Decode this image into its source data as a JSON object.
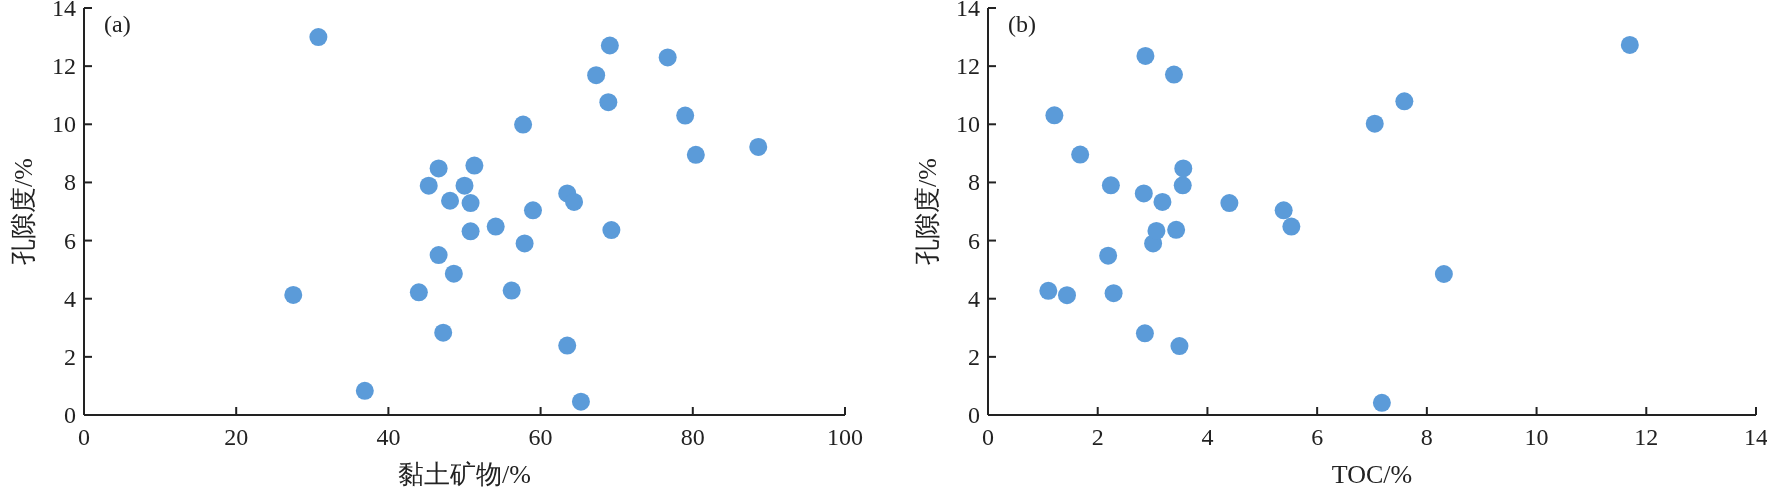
{
  "chart_data": [
    {
      "type": "scatter",
      "title": "(a)",
      "xlabel": "黏土矿物/%",
      "ylabel": "孔隙度/%",
      "xlim": [
        0,
        100
      ],
      "xticks": [
        0,
        20,
        40,
        60,
        80,
        100
      ],
      "ylim": [
        0,
        14
      ],
      "yticks": [
        0,
        2,
        4,
        6,
        8,
        10,
        12,
        14
      ],
      "marker": "circle",
      "series": [
        {
          "color": "#5b9bd9",
          "x": [
            30.8,
            27.5,
            36.9,
            44.0,
            45.3,
            46.6,
            46.6,
            47.2,
            48.1,
            48.6,
            50.0,
            50.8,
            50.8,
            51.3,
            54.1,
            56.2,
            57.7,
            57.9,
            59.0,
            63.5,
            63.5,
            64.4,
            65.3,
            67.3,
            68.9,
            69.1,
            69.3,
            76.7,
            79.0,
            80.4,
            88.6
          ],
          "values": [
            13.0,
            4.13,
            0.83,
            4.22,
            7.89,
            8.48,
            5.5,
            2.83,
            7.37,
            4.86,
            7.89,
            7.29,
            6.32,
            8.58,
            6.48,
            4.28,
            9.99,
            5.9,
            7.04,
            2.39,
            7.62,
            7.33,
            0.46,
            11.69,
            10.76,
            12.71,
            6.36,
            12.3,
            10.3,
            8.95,
            9.22
          ]
        }
      ]
    },
    {
      "type": "scatter",
      "title": "(b)",
      "xlabel": "TOC/%",
      "ylabel": "孔隙度/%",
      "xlim": [
        0,
        14
      ],
      "xticks": [
        0,
        2,
        4,
        6,
        8,
        10,
        12,
        14
      ],
      "ylim": [
        0,
        14
      ],
      "yticks": [
        0,
        2,
        4,
        6,
        8,
        10,
        12,
        14
      ],
      "marker": "circle",
      "series": [
        {
          "color": "#5b9bd9",
          "x": [
            1.21,
            1.1,
            1.44,
            1.68,
            2.19,
            2.24,
            2.29,
            2.84,
            2.86,
            2.87,
            3.01,
            3.07,
            3.18,
            3.39,
            3.43,
            3.49,
            3.55,
            3.56,
            4.4,
            5.39,
            5.53,
            7.05,
            7.18,
            7.59,
            8.31,
            11.7
          ],
          "values": [
            10.31,
            4.27,
            4.12,
            8.96,
            5.48,
            7.9,
            4.19,
            7.62,
            2.81,
            12.35,
            5.9,
            6.33,
            7.33,
            11.71,
            6.37,
            2.37,
            7.9,
            8.48,
            7.29,
            7.04,
            6.48,
            10.02,
            0.42,
            10.79,
            4.85,
            12.73
          ]
        }
      ]
    }
  ]
}
